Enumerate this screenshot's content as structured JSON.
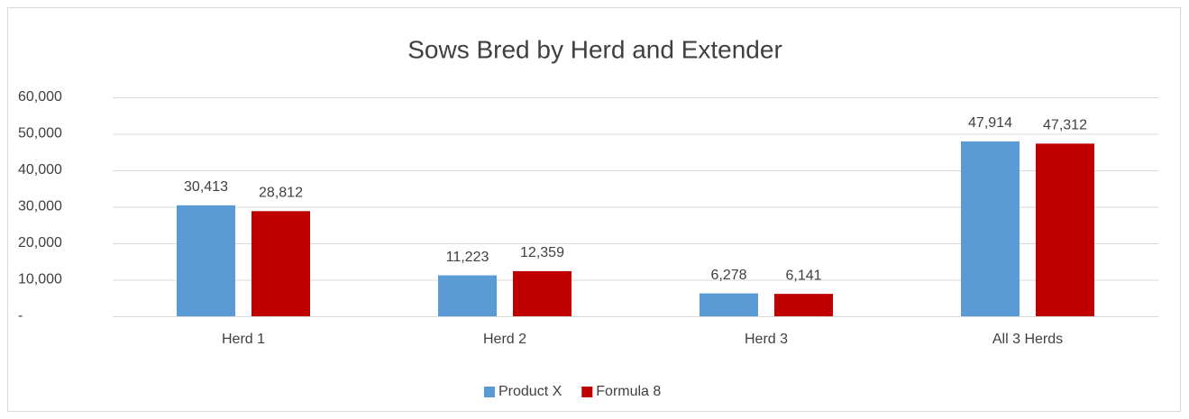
{
  "chart_data": {
    "type": "bar",
    "title": "Sows Bred by Herd and Extender",
    "categories": [
      "Herd 1",
      "Herd 2",
      "Herd 3",
      "All 3 Herds"
    ],
    "series": [
      {
        "name": "Product X",
        "color": "#5b9bd5",
        "values": [
          30413,
          11223,
          6278,
          47914
        ],
        "value_labels": [
          "30,413",
          "11,223",
          "6,278",
          "47,914"
        ]
      },
      {
        "name": "Formula 8",
        "color": "#c00000",
        "values": [
          28812,
          12359,
          6141,
          47312
        ],
        "value_labels": [
          "28,812",
          "12,359",
          "6,141",
          "47,312"
        ]
      }
    ],
    "ylim": [
      0,
      60000
    ],
    "yticks": [
      {
        "value": 0,
        "label": "-"
      },
      {
        "value": 10000,
        "label": "10,000"
      },
      {
        "value": 20000,
        "label": "20,000"
      },
      {
        "value": 30000,
        "label": "30,000"
      },
      {
        "value": 40000,
        "label": "40,000"
      },
      {
        "value": 50000,
        "label": "50,000"
      },
      {
        "value": 60000,
        "label": "60,000"
      }
    ],
    "grid": true,
    "legend": "bottom"
  }
}
